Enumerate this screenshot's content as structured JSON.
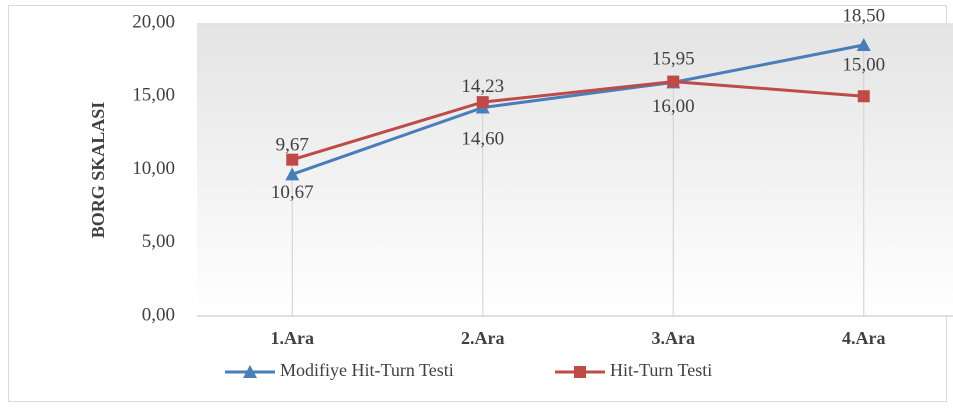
{
  "chart_data": {
    "type": "line",
    "y_label": "BORG SKALASI",
    "categories": [
      "1.Ara",
      "2.Ara",
      "3.Ara",
      "4.Ara"
    ],
    "series": [
      {
        "name": "Modifiye Hit-Turn Testi",
        "color": "#4a7ebb",
        "marker": "triangle",
        "values": [
          9.67,
          14.23,
          15.95,
          18.5
        ],
        "value_labels": [
          "9,67",
          "14,23",
          "15,95",
          "18,50"
        ]
      },
      {
        "name": "Hit-Turn Testi",
        "color": "#be4b48",
        "marker": "square",
        "values": [
          10.67,
          14.6,
          16.0,
          15.0
        ],
        "value_labels": [
          "10,67",
          "14,60",
          "16,00",
          "15,00"
        ]
      }
    ],
    "ylim": [
      0,
      20
    ],
    "yticks": [
      {
        "value": 0,
        "label": "0,00"
      },
      {
        "value": 5,
        "label": "5,00"
      },
      {
        "value": 10,
        "label": "10,00"
      },
      {
        "value": 15,
        "label": "15,00"
      },
      {
        "value": 20,
        "label": "20,00"
      }
    ],
    "legend": "bottom"
  }
}
